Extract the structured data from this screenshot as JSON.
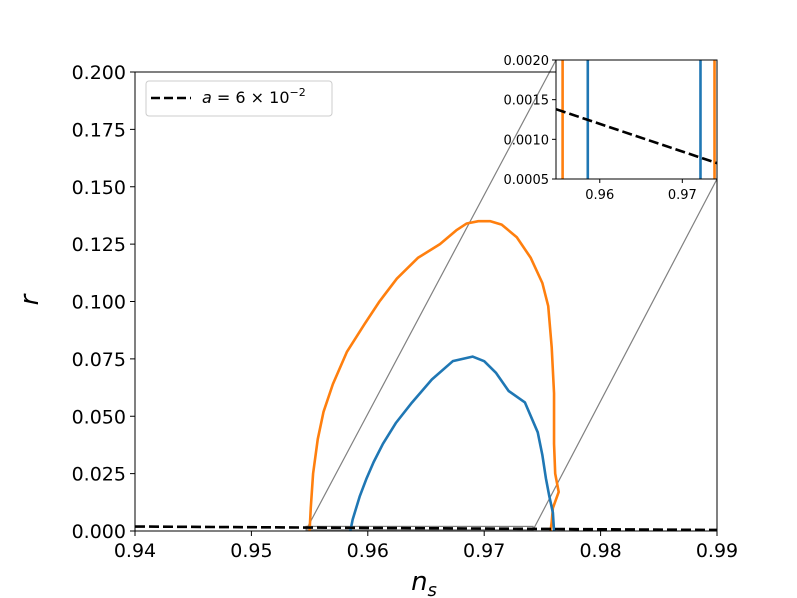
{
  "chart_data": {
    "type": "line",
    "xlabel": "n",
    "xlabel_sub": "s",
    "ylabel": "r",
    "xlim": [
      0.94,
      0.99
    ],
    "ylim": [
      0.0,
      0.2
    ],
    "xticks": [
      "0.94",
      "0.95",
      "0.96",
      "0.97",
      "0.98",
      "0.99"
    ],
    "yticks": [
      "0.000",
      "0.025",
      "0.050",
      "0.075",
      "0.100",
      "0.125",
      "0.150",
      "0.175",
      "0.200"
    ],
    "legend": {
      "placement": "upper-left",
      "entries": [
        {
          "label_prefix": "a = 6 × 10",
          "label_sup": "−2",
          "style": "dashed",
          "color": "#000000"
        }
      ]
    },
    "series": [
      {
        "color": "#ff7f0e",
        "style": "solid",
        "points": [
          [
            0.955,
            0.0
          ],
          [
            0.9551,
            0.01
          ],
          [
            0.9553,
            0.025
          ],
          [
            0.9557,
            0.04
          ],
          [
            0.9562,
            0.052
          ],
          [
            0.957,
            0.064
          ],
          [
            0.9582,
            0.078
          ],
          [
            0.9597,
            0.09
          ],
          [
            0.961,
            0.1
          ],
          [
            0.9625,
            0.11
          ],
          [
            0.9643,
            0.119
          ],
          [
            0.9662,
            0.125
          ],
          [
            0.9676,
            0.131
          ],
          [
            0.9685,
            0.134
          ],
          [
            0.9695,
            0.135
          ],
          [
            0.9705,
            0.135
          ],
          [
            0.9715,
            0.1335
          ],
          [
            0.9728,
            0.128
          ],
          [
            0.974,
            0.119
          ],
          [
            0.975,
            0.108
          ],
          [
            0.9755,
            0.098
          ],
          [
            0.9758,
            0.08
          ],
          [
            0.976,
            0.06
          ],
          [
            0.976,
            0.038
          ],
          [
            0.9761,
            0.025
          ],
          [
            0.9764,
            0.017
          ],
          [
            0.9759,
            0.01
          ],
          [
            0.9758,
            0.004
          ],
          [
            0.9757,
            0.0
          ]
        ]
      },
      {
        "color": "#1f77b4",
        "style": "solid",
        "points": [
          [
            0.9585,
            0.0
          ],
          [
            0.9587,
            0.005
          ],
          [
            0.9593,
            0.015
          ],
          [
            0.9599,
            0.023
          ],
          [
            0.9605,
            0.03
          ],
          [
            0.9613,
            0.038
          ],
          [
            0.9624,
            0.047
          ],
          [
            0.9638,
            0.056
          ],
          [
            0.9655,
            0.066
          ],
          [
            0.9673,
            0.074
          ],
          [
            0.969,
            0.076
          ],
          [
            0.97,
            0.074
          ],
          [
            0.971,
            0.069
          ],
          [
            0.9721,
            0.061
          ],
          [
            0.9735,
            0.056
          ],
          [
            0.9746,
            0.043
          ],
          [
            0.975,
            0.033
          ],
          [
            0.9753,
            0.023
          ],
          [
            0.9756,
            0.015
          ],
          [
            0.9759,
            0.008
          ],
          [
            0.976,
            0.0
          ]
        ]
      },
      {
        "color": "#000000",
        "style": "dashed",
        "points": [
          [
            0.94,
            0.00195
          ],
          [
            0.99,
            0.00045
          ]
        ]
      }
    ],
    "inset": {
      "xlim": [
        0.9547,
        0.9742
      ],
      "ylim": [
        0.0005,
        0.002
      ],
      "xticks": [
        "0.96",
        "0.97"
      ],
      "yticks": [
        "0.0005",
        "0.0010",
        "0.0015",
        "0.0020"
      ],
      "series": [
        {
          "color": "#ff7f0e",
          "style": "solid",
          "points": [
            [
              0.9555,
              0.0005
            ],
            [
              0.9555,
              0.002
            ]
          ]
        },
        {
          "color": "#1f77b4",
          "style": "solid",
          "points": [
            [
              0.95855,
              0.0005
            ],
            [
              0.95855,
              0.002
            ]
          ]
        },
        {
          "color": "#1f77b4",
          "style": "solid",
          "points": [
            [
              0.9722,
              0.0005
            ],
            [
              0.9722,
              0.002
            ]
          ]
        },
        {
          "color": "#ff7f0e",
          "style": "solid",
          "points": [
            [
              0.9739,
              0.0005
            ],
            [
              0.9739,
              0.002
            ]
          ]
        },
        {
          "color": "#000000",
          "style": "dashed",
          "points": [
            [
              0.9547,
              0.00138
            ],
            [
              0.9742,
              0.0007
            ]
          ]
        }
      ]
    }
  }
}
